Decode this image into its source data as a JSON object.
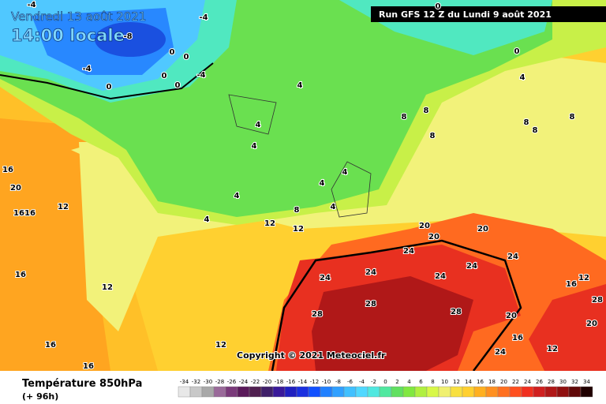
{
  "header": {
    "date": "Vendredi 13 août 2021",
    "time": "14:00 locale",
    "run": "Run GFS 12 Z du Lundi 9 août 2021"
  },
  "copyright": "Copyright © 2021 Meteociel.fr",
  "legend": {
    "title": "Température 850hPa",
    "subtitle": "(+ 96h)",
    "values": [
      -34,
      -32,
      -30,
      -28,
      -26,
      -24,
      -22,
      -20,
      -18,
      -16,
      -14,
      -12,
      -10,
      -8,
      -6,
      -4,
      -2,
      0,
      2,
      4,
      6,
      8,
      10,
      12,
      14,
      16,
      18,
      20,
      22,
      24,
      26,
      28,
      30,
      32,
      34
    ],
    "colors": [
      "#e8e8e8",
      "#c8c8c8",
      "#a8a8a8",
      "#9a6a9a",
      "#7a3a7a",
      "#5a1a5a",
      "#502050",
      "#40206a",
      "#3a1a9a",
      "#2020c0",
      "#1a30e0",
      "#1050ff",
      "#2080ff",
      "#30a0ff",
      "#40c0ff",
      "#50d8ff",
      "#50e8e0",
      "#50e8a0",
      "#60e060",
      "#80e840",
      "#b0f040",
      "#d8f848",
      "#f0f070",
      "#f8e040",
      "#ffd030",
      "#ffb020",
      "#ff9020",
      "#ff7020",
      "#ff5020",
      "#f03020",
      "#d02020",
      "#b01818",
      "#901010",
      "#600808",
      "#200000"
    ]
  },
  "map_labels": [
    -4,
    -4,
    -8,
    -4,
    0,
    0,
    0,
    -4,
    0,
    0,
    0,
    0,
    4,
    4,
    4,
    4,
    4,
    4,
    4,
    4,
    4,
    8,
    8,
    8,
    8,
    8,
    8,
    8,
    12,
    12,
    12,
    12,
    12,
    16,
    16,
    16,
    16,
    16,
    16,
    20,
    20,
    20,
    20,
    24,
    24,
    24,
    24,
    24,
    24,
    24,
    28,
    28,
    28,
    28,
    20,
    20,
    12,
    16,
    16,
    12
  ]
}
